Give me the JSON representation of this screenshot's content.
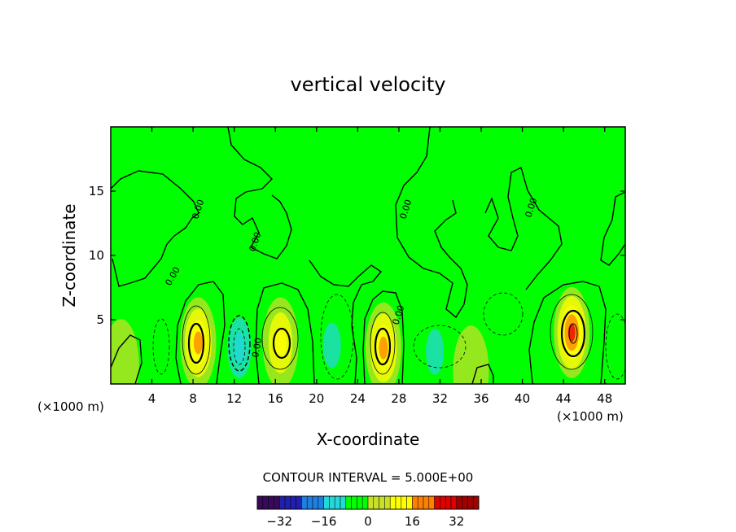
{
  "chart_data": {
    "type": "heatmap",
    "title": "vertical velocity",
    "xlabel": "X-coordinate",
    "ylabel": "Z-coordinate",
    "x_unit": "(×1000 m)",
    "xlim": [
      0,
      50
    ],
    "ylim": [
      0,
      20
    ],
    "x_ticks": [
      4,
      8,
      12,
      16,
      20,
      24,
      28,
      32,
      36,
      40,
      44,
      48
    ],
    "y_ticks": [
      5,
      10,
      15
    ],
    "contour_interval_text": "CONTOUR INTERVAL = 5.000E+00",
    "contour_label": "0.00",
    "colorbar": {
      "range": [
        -40,
        40
      ],
      "ticks": [
        -32,
        -16,
        0,
        16,
        32
      ],
      "colors": [
        "#3a0a5a",
        "#2020b0",
        "#1f7fe0",
        "#22d8d8",
        "#00ff00",
        "#c8e028",
        "#ffff00",
        "#ff8000",
        "#e00000",
        "#a00000"
      ]
    },
    "features": [
      {
        "x": 8.5,
        "z": 3.2,
        "peak": 22
      },
      {
        "x": 12.5,
        "z": 2.8,
        "peak": -17
      },
      {
        "x": 16.5,
        "z": 3.2,
        "peak": 16
      },
      {
        "x": 26.5,
        "z": 2.8,
        "peak": 22
      },
      {
        "x": 31.5,
        "z": 2.5,
        "peak": -8
      },
      {
        "x": 44.8,
        "z": 4.0,
        "peak": 26
      },
      {
        "x": 21.5,
        "z": 3.0,
        "peak": -8
      },
      {
        "x": 5.0,
        "z": 3.0,
        "peak": -6
      },
      {
        "x": 38.5,
        "z": 5.5,
        "peak": -5
      },
      {
        "x": 48.5,
        "z": 3.0,
        "peak": -7
      },
      {
        "x": 1.0,
        "z": 1.5,
        "peak": 7
      },
      {
        "x": 35.0,
        "z": 1.0,
        "peak": 5
      }
    ]
  }
}
